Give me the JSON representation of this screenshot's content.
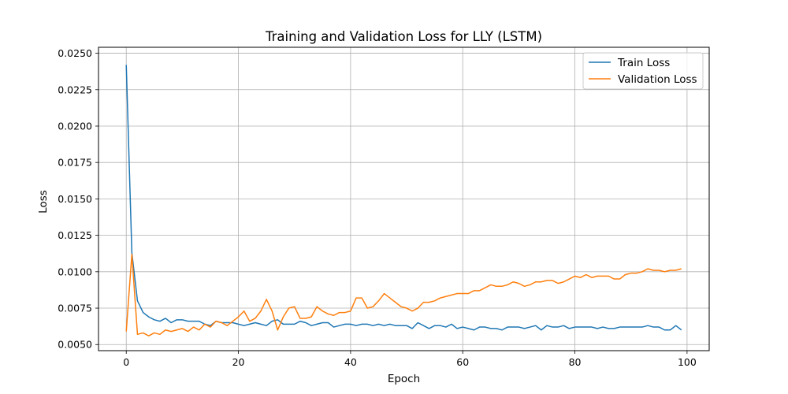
{
  "chart_data": {
    "type": "line",
    "title": "Training and Validation Loss for LLY (LSTM)",
    "xlabel": "Epoch",
    "ylabel": "Loss",
    "xlim": [
      -4.95,
      103.95
    ],
    "ylim": [
      0.00458,
      0.02541
    ],
    "x_ticks": [
      0,
      20,
      40,
      60,
      80,
      100
    ],
    "y_ticks": [
      0.005,
      0.0075,
      0.01,
      0.0125,
      0.015,
      0.0175,
      0.02,
      0.0225,
      0.025
    ],
    "y_tick_labels": [
      "0.0050",
      "0.0075",
      "0.0100",
      "0.0125",
      "0.0150",
      "0.0175",
      "0.0200",
      "0.0225",
      "0.0250"
    ],
    "grid": true,
    "legend_position": "top-right",
    "series": [
      {
        "name": "Train Loss",
        "color": "#1f77b4",
        "values": [
          0.0242,
          0.0113,
          0.008,
          0.0072,
          0.0069,
          0.0067,
          0.0066,
          0.0068,
          0.0065,
          0.0067,
          0.0067,
          0.0066,
          0.0066,
          0.0066,
          0.0064,
          0.0063,
          0.0066,
          0.0065,
          0.0065,
          0.0065,
          0.0064,
          0.0063,
          0.0064,
          0.0065,
          0.0064,
          0.0063,
          0.0066,
          0.0067,
          0.0064,
          0.0064,
          0.0064,
          0.0066,
          0.0065,
          0.0063,
          0.0064,
          0.0065,
          0.0065,
          0.0062,
          0.0063,
          0.0064,
          0.0064,
          0.0063,
          0.0064,
          0.0064,
          0.0063,
          0.0064,
          0.0063,
          0.0064,
          0.0063,
          0.0063,
          0.0063,
          0.0061,
          0.0065,
          0.0063,
          0.0061,
          0.0063,
          0.0063,
          0.0062,
          0.0064,
          0.0061,
          0.0062,
          0.0061,
          0.006,
          0.0062,
          0.0062,
          0.0061,
          0.0061,
          0.006,
          0.0062,
          0.0062,
          0.0062,
          0.0061,
          0.0062,
          0.0063,
          0.006,
          0.0063,
          0.0062,
          0.0062,
          0.0063,
          0.0061,
          0.0062,
          0.0062,
          0.0062,
          0.0062,
          0.0061,
          0.0062,
          0.0061,
          0.0061,
          0.0062,
          0.0062,
          0.0062,
          0.0062,
          0.0062,
          0.0063,
          0.0062,
          0.0062,
          0.006,
          0.006,
          0.0063,
          0.006
        ]
      },
      {
        "name": "Validation Loss",
        "color": "#ff7f0e",
        "values": [
          0.0059,
          0.0112,
          0.0057,
          0.0058,
          0.0056,
          0.0058,
          0.0057,
          0.006,
          0.0059,
          0.006,
          0.0061,
          0.0059,
          0.0062,
          0.006,
          0.0064,
          0.0062,
          0.0066,
          0.0065,
          0.0063,
          0.0066,
          0.0069,
          0.0073,
          0.0066,
          0.0068,
          0.0073,
          0.0081,
          0.0073,
          0.006,
          0.0069,
          0.0075,
          0.0076,
          0.0068,
          0.0068,
          0.0069,
          0.0076,
          0.0073,
          0.0071,
          0.007,
          0.0072,
          0.0072,
          0.0073,
          0.0082,
          0.0082,
          0.0075,
          0.0076,
          0.008,
          0.0085,
          0.0082,
          0.0079,
          0.0076,
          0.0075,
          0.0073,
          0.0075,
          0.0079,
          0.0079,
          0.008,
          0.0082,
          0.0083,
          0.0084,
          0.0085,
          0.0085,
          0.0085,
          0.0087,
          0.0087,
          0.0089,
          0.0091,
          0.009,
          0.009,
          0.0091,
          0.0093,
          0.0092,
          0.009,
          0.0091,
          0.0093,
          0.0093,
          0.0094,
          0.0094,
          0.0092,
          0.0093,
          0.0095,
          0.0097,
          0.0096,
          0.0098,
          0.0096,
          0.0097,
          0.0097,
          0.0097,
          0.0095,
          0.0095,
          0.0098,
          0.0099,
          0.0099,
          0.01,
          0.0102,
          0.0101,
          0.0101,
          0.01,
          0.0101,
          0.0101,
          0.0102
        ]
      }
    ]
  }
}
